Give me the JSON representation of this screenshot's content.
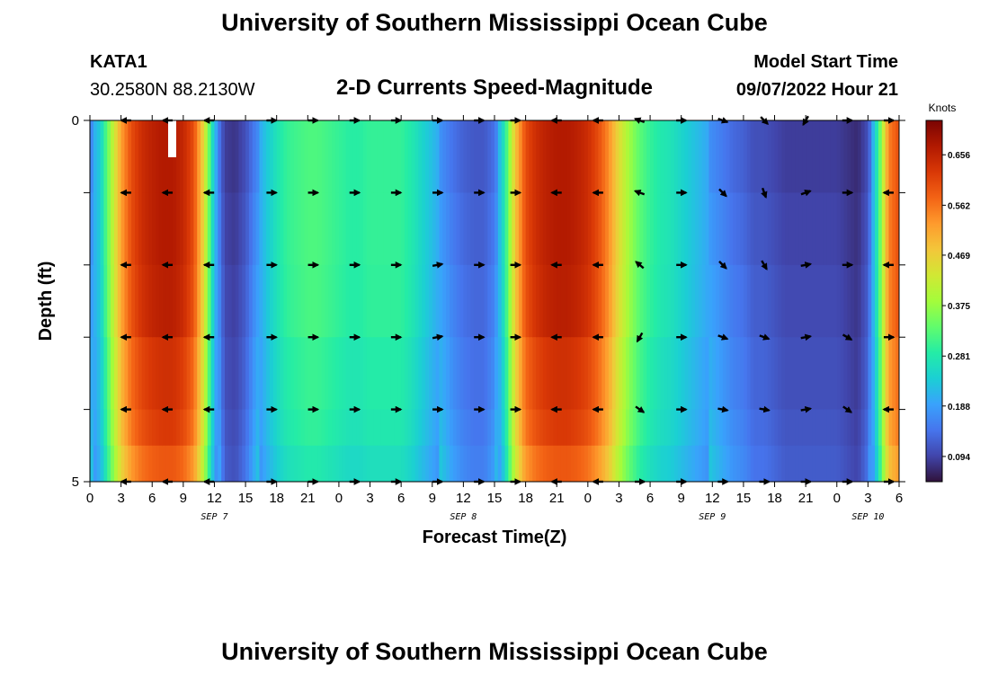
{
  "page": {
    "title": "University of Southern Mississippi Ocean Cube",
    "footer_title": "University of Southern Mississippi Ocean Cube"
  },
  "header": {
    "station": "KATA1",
    "coords": "30.2580N  88.2130W",
    "subtitle": "2-D Currents Speed-Magnitude",
    "model_label": "Model Start Time",
    "model_time": "09/07/2022 Hour 21"
  },
  "chart_data": {
    "type": "heatmap",
    "title": "2-D Currents Speed-Magnitude",
    "xlabel": "Forecast Time(Z)",
    "ylabel": "Depth (ft)",
    "x_tick_labels": [
      "0",
      "3",
      "6",
      "9",
      "12",
      "15",
      "18",
      "21",
      "0",
      "3",
      "6",
      "9",
      "12",
      "15",
      "18",
      "21",
      "0",
      "3",
      "6",
      "9",
      "12",
      "15",
      "18",
      "21",
      "0",
      "3",
      "6"
    ],
    "x_hours": [
      0,
      3,
      6,
      9,
      12,
      15,
      18,
      21,
      24,
      27,
      30,
      33,
      36,
      39,
      42,
      45,
      48,
      51,
      54,
      57,
      60,
      63,
      66,
      69,
      72,
      75,
      78
    ],
    "xlim_hours": [
      0,
      78
    ],
    "date_labels": [
      {
        "label": "SEP 7",
        "hour": 12
      },
      {
        "label": "SEP 8",
        "hour": 36
      },
      {
        "label": "SEP 9",
        "hour": 60
      },
      {
        "label": "SEP 10",
        "hour": 75
      }
    ],
    "y_tick_labels": [
      "0",
      "5"
    ],
    "ylim_ft": [
      0,
      5
    ],
    "depth_layers_ft": [
      0,
      1,
      2,
      3,
      4,
      4.5
    ],
    "colorbar": {
      "unit": "Knots",
      "min": 0.047,
      "max": 0.72,
      "tick_values": [
        0.094,
        0.188,
        0.281,
        0.375,
        0.469,
        0.562,
        0.656
      ],
      "tick_labels": [
        "0.094",
        "0.188",
        "0.281",
        "0.375",
        "0.469",
        "0.562",
        "0.656"
      ],
      "stops": [
        "#30123b",
        "#4145ab",
        "#4675ed",
        "#39a2fc",
        "#1bcfd4",
        "#24eca6",
        "#61fc6c",
        "#a4fc3b",
        "#d1e834",
        "#f3c63a",
        "#fe9b2d",
        "#f36315",
        "#d93806",
        "#b11901",
        "#7a0402"
      ]
    },
    "speed_profile_hours": [
      0,
      1,
      2,
      3,
      4,
      5,
      6,
      7,
      8,
      9,
      10,
      11,
      12,
      13,
      14,
      15,
      16,
      17,
      18,
      19,
      20,
      21,
      22,
      23,
      24,
      25,
      26,
      27,
      28,
      29,
      30,
      31,
      32,
      33,
      34,
      35,
      36,
      37,
      38,
      39,
      40,
      41,
      42,
      43,
      44,
      45,
      46,
      47,
      48,
      49,
      50,
      51,
      52,
      53,
      54,
      55,
      56,
      57,
      58,
      59,
      60,
      61,
      62,
      63,
      64,
      65,
      66,
      67,
      68,
      69,
      70,
      71,
      72,
      73,
      74,
      75,
      76,
      77,
      78
    ],
    "speed_profile_knots": [
      0.18,
      0.24,
      0.38,
      0.52,
      0.6,
      0.64,
      0.66,
      0.67,
      0.67,
      0.65,
      0.6,
      0.45,
      0.22,
      0.1,
      0.09,
      0.12,
      0.18,
      0.23,
      0.27,
      0.3,
      0.31,
      0.32,
      0.32,
      0.31,
      0.3,
      0.29,
      0.29,
      0.3,
      0.3,
      0.3,
      0.3,
      0.28,
      0.25,
      0.22,
      0.19,
      0.16,
      0.14,
      0.13,
      0.13,
      0.16,
      0.28,
      0.48,
      0.6,
      0.64,
      0.66,
      0.67,
      0.67,
      0.66,
      0.64,
      0.6,
      0.54,
      0.45,
      0.38,
      0.33,
      0.3,
      0.28,
      0.27,
      0.25,
      0.23,
      0.21,
      0.19,
      0.17,
      0.15,
      0.14,
      0.12,
      0.12,
      0.11,
      0.1,
      0.1,
      0.1,
      0.1,
      0.1,
      0.1,
      0.09,
      0.08,
      0.12,
      0.3,
      0.55,
      0.6
    ],
    "vectors": {
      "hours": [
        3.5,
        7.5,
        11.5,
        17.5,
        21.5,
        25.5,
        29.5,
        33.5,
        37.5,
        41,
        45,
        49,
        53,
        57,
        61,
        65,
        69,
        73,
        77
      ],
      "depth_ft": [
        0,
        1,
        2,
        3,
        4,
        5
      ],
      "direction_deg_clockwise_from_east": [
        [
          180,
          180,
          180,
          0,
          0,
          0,
          0,
          0,
          0,
          0,
          180,
          180,
          200,
          0,
          20,
          45,
          120,
          0,
          0
        ],
        [
          180,
          180,
          180,
          0,
          0,
          0,
          0,
          0,
          0,
          0,
          180,
          180,
          200,
          0,
          45,
          70,
          -20,
          0,
          180
        ],
        [
          180,
          180,
          180,
          0,
          0,
          0,
          0,
          -10,
          0,
          0,
          180,
          180,
          220,
          0,
          45,
          60,
          -10,
          0,
          180
        ],
        [
          180,
          180,
          180,
          0,
          0,
          0,
          0,
          -10,
          0,
          0,
          180,
          180,
          120,
          0,
          20,
          20,
          -10,
          30,
          0
        ],
        [
          180,
          180,
          180,
          0,
          0,
          0,
          0,
          0,
          0,
          0,
          180,
          180,
          35,
          0,
          10,
          10,
          -10,
          35,
          180
        ],
        [
          180,
          180,
          180,
          0,
          0,
          0,
          0,
          0,
          0,
          0,
          180,
          180,
          0,
          0,
          0,
          0,
          0,
          0,
          0
        ]
      ]
    }
  }
}
